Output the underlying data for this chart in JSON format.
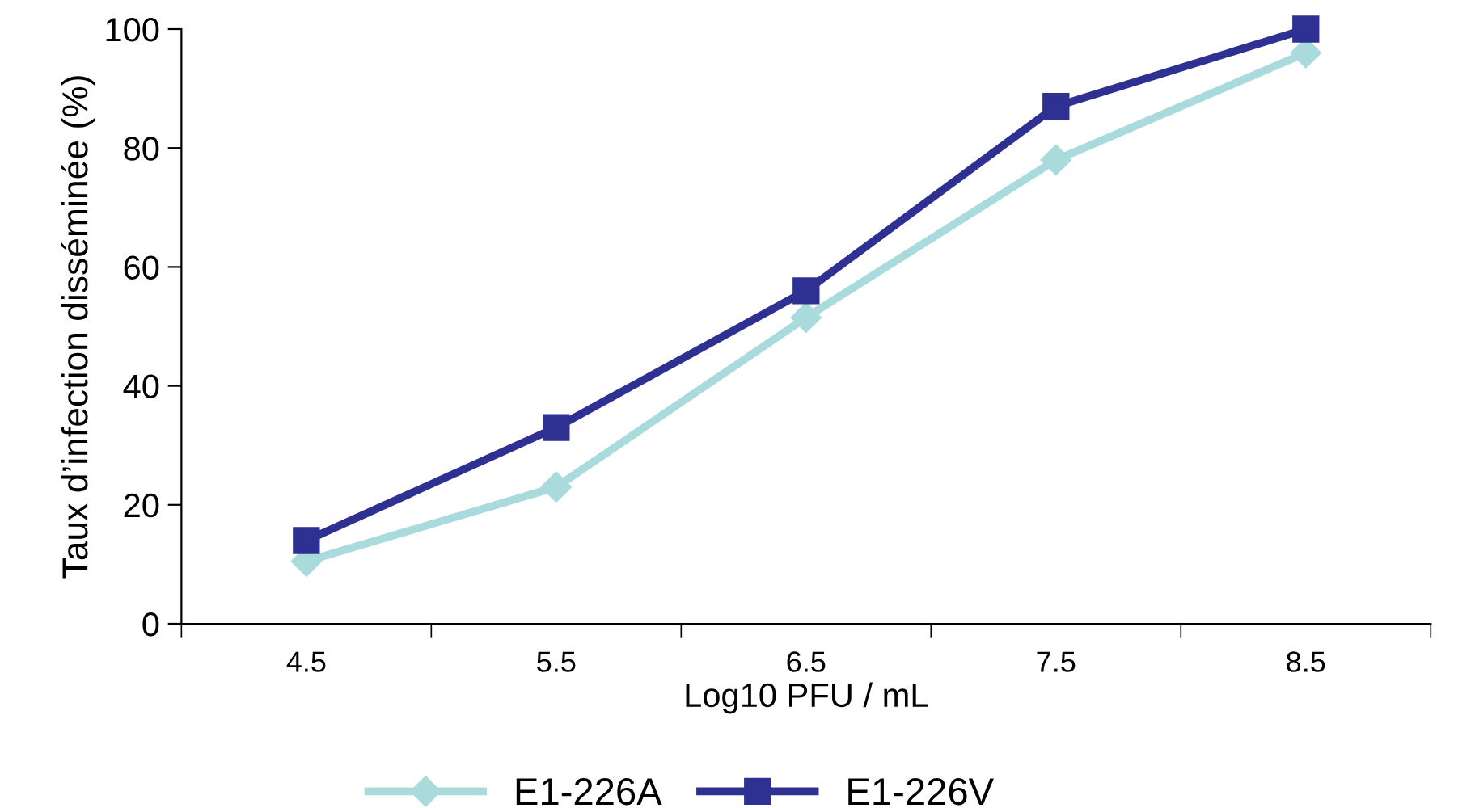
{
  "chart_data": {
    "type": "line",
    "xlabel": "Log10 PFU / mL",
    "ylabel": "Taux d’infection disséminée (%)",
    "categories": [
      "4.5",
      "5.5",
      "6.5",
      "7.5",
      "8.5"
    ],
    "series": [
      {
        "name": "E1-226A",
        "color": "#a9dbdc",
        "marker": "diamond",
        "values": [
          10.5,
          23,
          51.5,
          78,
          96
        ]
      },
      {
        "name": "E1-226V",
        "color": "#2e3192",
        "marker": "square",
        "values": [
          14,
          33,
          56,
          87,
          100
        ]
      }
    ],
    "ylim": [
      0,
      100
    ],
    "yticks": [
      0,
      20,
      40,
      60,
      80,
      100
    ],
    "grid": false,
    "legend": "bottom",
    "line_style": "solid"
  }
}
